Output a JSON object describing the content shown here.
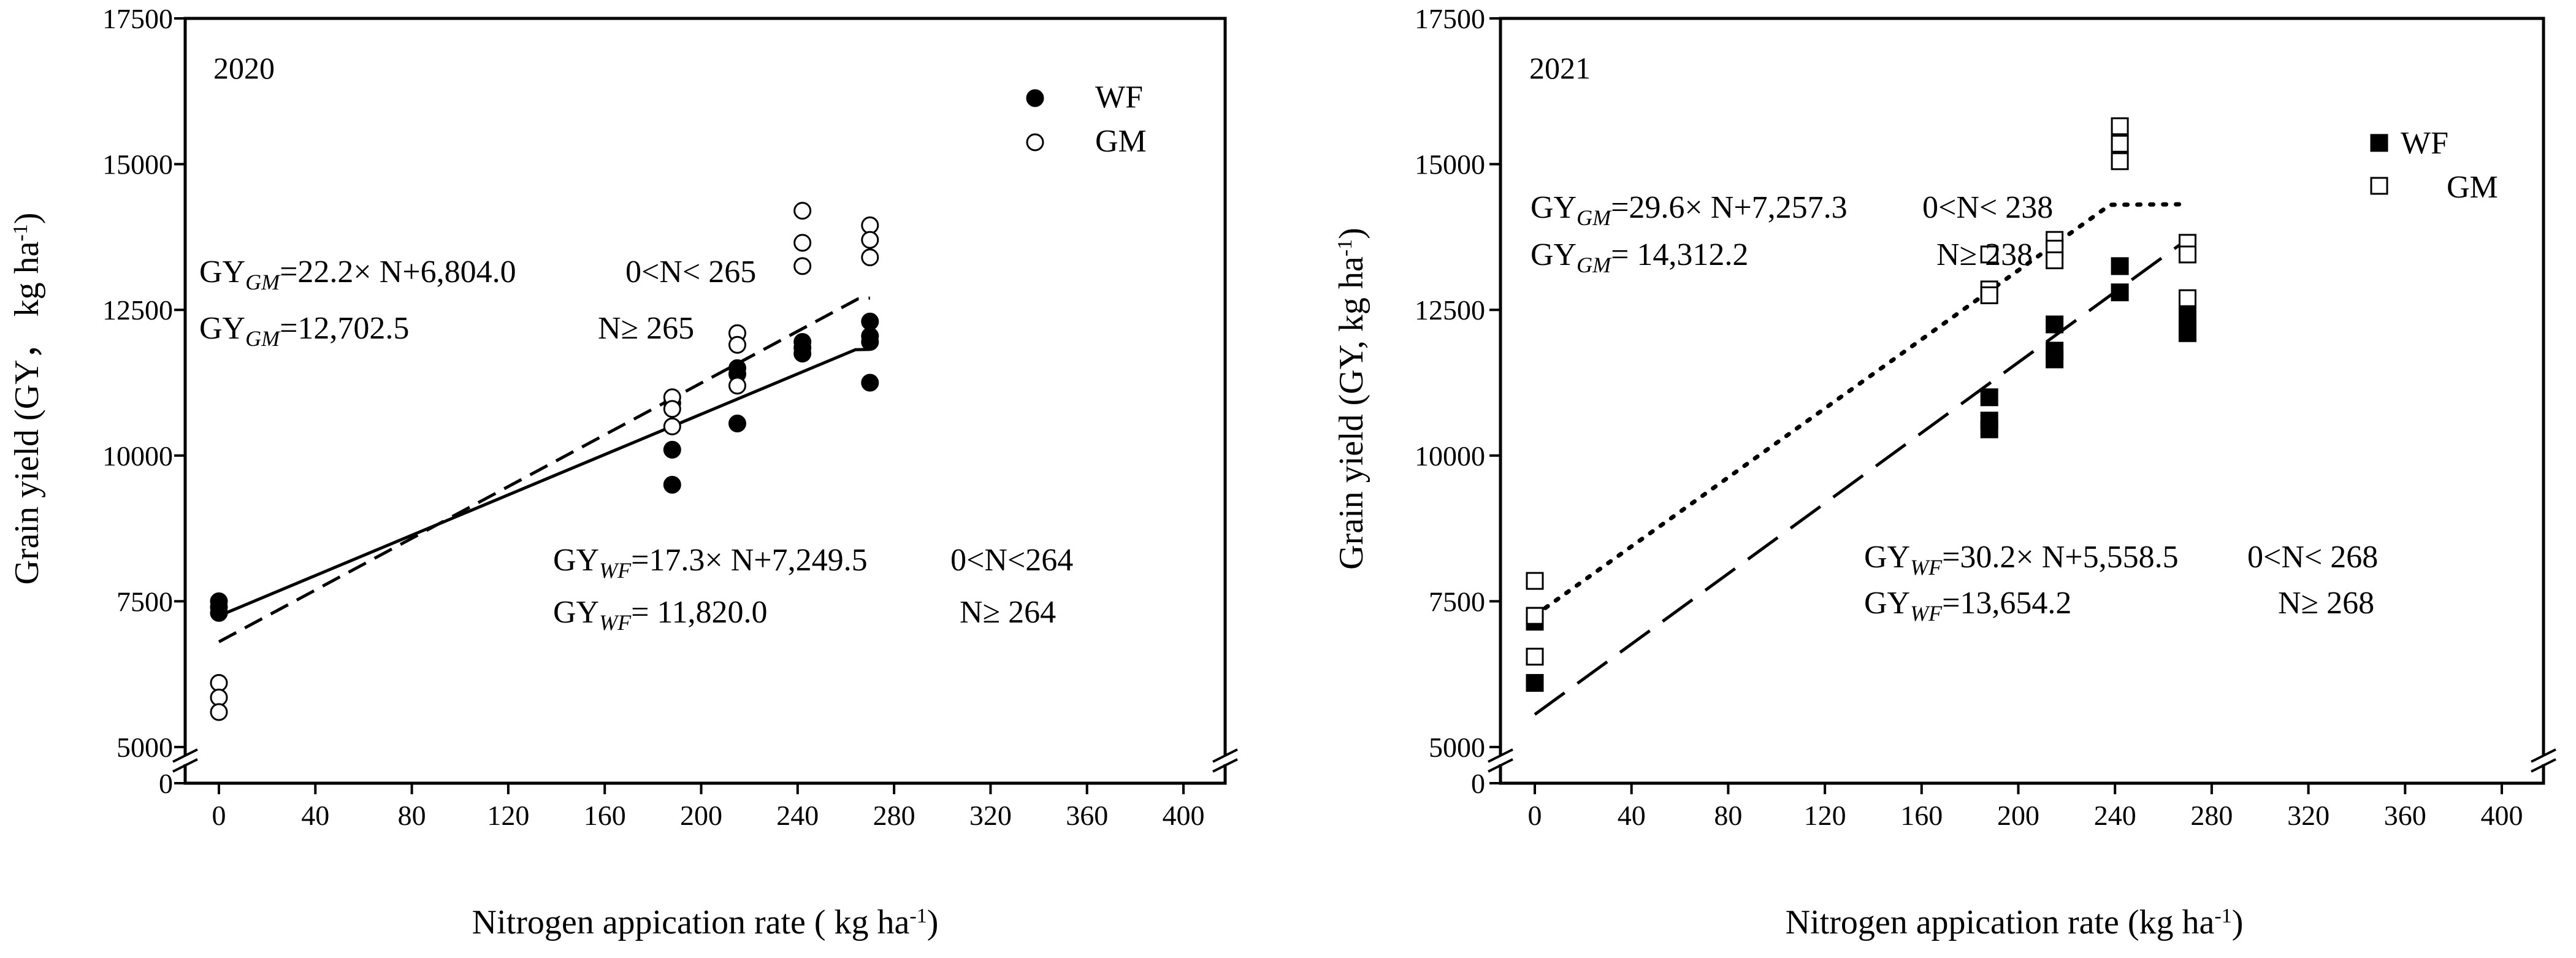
{
  "chart_data": [
    {
      "type": "scatter",
      "panel_label": "2020",
      "xlabel": "Nitrogen appication rate ( kg ha",
      "xlabel_sup": "-1",
      "xlabel_end": ")",
      "ylabel": "Grain yield (GY， kg ha",
      "ylabel_sup": "-1",
      "ylabel_end": ")",
      "x_ticks": [
        0,
        40,
        80,
        120,
        160,
        200,
        240,
        280,
        320,
        360,
        400
      ],
      "y_ticks": [
        5000,
        7500,
        10000,
        12500,
        15000,
        17500
      ],
      "y_zero_label": "0",
      "xlim": [
        -20,
        400
      ],
      "ylim": [
        5000,
        17500
      ],
      "axis_break": true,
      "legend": {
        "position": "top-right",
        "entries": [
          {
            "label": "WF",
            "marker": "filled-circle"
          },
          {
            "label": "GM",
            "marker": "open-circle"
          }
        ]
      },
      "series": [
        {
          "name": "WF",
          "marker": "filled-circle",
          "points": [
            [
              0,
              7500
            ],
            [
              0,
              7400
            ],
            [
              0,
              7300
            ],
            [
              188,
              10900
            ],
            [
              188,
              10100
            ],
            [
              188,
              9500
            ],
            [
              215,
              11500
            ],
            [
              215,
              11400
            ],
            [
              215,
              10550
            ],
            [
              242,
              11950
            ],
            [
              242,
              11850
            ],
            [
              242,
              11750
            ],
            [
              270,
              12300
            ],
            [
              270,
              12050
            ],
            [
              270,
              11950
            ],
            [
              270,
              11250
            ]
          ]
        },
        {
          "name": "GM",
          "marker": "open-circle",
          "points": [
            [
              0,
              6100
            ],
            [
              0,
              5850
            ],
            [
              0,
              5600
            ],
            [
              188,
              11000
            ],
            [
              188,
              10800
            ],
            [
              188,
              10500
            ],
            [
              215,
              12100
            ],
            [
              215,
              11900
            ],
            [
              215,
              11200
            ],
            [
              242,
              14200
            ],
            [
              242,
              13650
            ],
            [
              242,
              13250
            ],
            [
              270,
              13950
            ],
            [
              270,
              13700
            ],
            [
              270,
              13400
            ]
          ]
        }
      ],
      "fits": [
        {
          "name": "WF",
          "style": "solid",
          "slope": 17.3,
          "intercept": 7249.5,
          "plateau": 11820.0,
          "breakpoint": 264,
          "x_end": 270
        },
        {
          "name": "GM",
          "style": "dashed",
          "slope": 22.2,
          "intercept": 6804.0,
          "plateau": 12702.5,
          "breakpoint": 265,
          "x_end": 270
        }
      ],
      "equations": {
        "gm_line1": {
          "a": "GY",
          "sub": "GM",
          "b": "=22.2×  N+6,804.0",
          "c": "0<N< 265"
        },
        "gm_line2": {
          "a": "GY",
          "sub": "GM",
          "b": "=12,702.5",
          "c": "N≥  265"
        },
        "wf_line1": {
          "a": "GY",
          "sub": "WF",
          "b": "=17.3×  N+7,249.5",
          "c": "0<N<264"
        },
        "wf_line2": {
          "a": "GY",
          "sub": "WF",
          "b": "=   11,820.0",
          "c": "N≥  264"
        }
      }
    },
    {
      "type": "scatter",
      "panel_label": "2021",
      "xlabel": "Nitrogen appication rate (kg ha",
      "xlabel_sup": "-1",
      "xlabel_end": ")",
      "ylabel": "Grain yield (GY, kg ha",
      "ylabel_sup": "-1",
      "ylabel_end": ")",
      "x_ticks": [
        0,
        40,
        80,
        120,
        160,
        200,
        240,
        280,
        320,
        360,
        400
      ],
      "y_ticks": [
        5000,
        7500,
        10000,
        12500,
        15000,
        17500
      ],
      "y_zero_label": "0",
      "xlim": [
        -20,
        400
      ],
      "ylim": [
        5000,
        17500
      ],
      "axis_break": true,
      "legend": {
        "position": "top-right",
        "entries": [
          {
            "label": "WF",
            "marker": "filled-square"
          },
          {
            "label": "GM",
            "marker": "open-square"
          }
        ]
      },
      "series": [
        {
          "name": "WF",
          "marker": "filled-square",
          "points": [
            [
              0,
              7250
            ],
            [
              0,
              7150
            ],
            [
              0,
              6100
            ],
            [
              188,
              11000
            ],
            [
              188,
              10600
            ],
            [
              188,
              10450
            ],
            [
              215,
              12250
            ],
            [
              215,
              11800
            ],
            [
              215,
              11650
            ],
            [
              242,
              13250
            ],
            [
              242,
              12800
            ],
            [
              270,
              12400
            ],
            [
              270,
              12200
            ],
            [
              270,
              12100
            ]
          ]
        },
        {
          "name": "GM",
          "marker": "open-square",
          "points": [
            [
              0,
              7850
            ],
            [
              0,
              7250
            ],
            [
              0,
              6550
            ],
            [
              188,
              13450
            ],
            [
              188,
              12850
            ],
            [
              188,
              12750
            ],
            [
              215,
              13700
            ],
            [
              215,
              13550
            ],
            [
              215,
              13350
            ],
            [
              242,
              15650
            ],
            [
              242,
              15350
            ],
            [
              242,
              15050
            ],
            [
              270,
              13650
            ],
            [
              270,
              13450
            ],
            [
              270,
              12700
            ]
          ]
        }
      ],
      "fits": [
        {
          "name": "GM",
          "style": "dotted",
          "slope": 29.6,
          "intercept": 7257.3,
          "plateau": 14312.2,
          "breakpoint": 238,
          "x_end": 270
        },
        {
          "name": "WF",
          "style": "long-dash",
          "slope": 30.2,
          "intercept": 5558.5,
          "plateau": 13654.2,
          "breakpoint": 268,
          "x_end": 270
        }
      ],
      "equations": {
        "gm_line1": {
          "a": "GY",
          "sub": "GM",
          "b": "=29.6×  N+7,257.3",
          "c": "0<N< 238"
        },
        "gm_line2": {
          "a": "GY",
          "sub": "GM",
          "b": "=  14,312.2",
          "c": "N≥  238"
        },
        "wf_line1": {
          "a": "GY",
          "sub": "WF",
          "b": "=30.2×  N+5,558.5",
          "c": "0<N< 268"
        },
        "wf_line2": {
          "a": "GY",
          "sub": "WF",
          "b": "=13,654.2",
          "c": "N≥  268"
        }
      }
    }
  ]
}
